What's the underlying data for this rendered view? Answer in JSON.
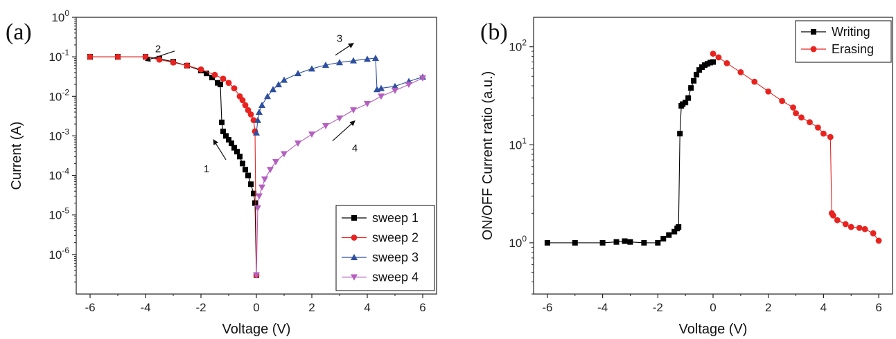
{
  "chart_data": [
    {
      "type": "line",
      "panel_label": "(a)",
      "xlabel": "Voltage (V)",
      "ylabel": "Current (A)",
      "xlim": [
        -6.5,
        6.5
      ],
      "ylim": [
        1e-07,
        1
      ],
      "yscale": "log",
      "x_ticks": [
        "-6",
        "-4",
        "-2",
        "0",
        "2",
        "4",
        "6"
      ],
      "y_ticks": [
        {
          "base": "10",
          "exp": "-6"
        },
        {
          "base": "10",
          "exp": "-5"
        },
        {
          "base": "10",
          "exp": "-4"
        },
        {
          "base": "10",
          "exp": "-3"
        },
        {
          "base": "10",
          "exp": "-2"
        },
        {
          "base": "10",
          "exp": "-1"
        },
        {
          "base": "10",
          "exp": "0"
        }
      ],
      "grid": false,
      "legend_position": "bottom-right",
      "series": [
        {
          "name": "sweep 1",
          "color": "#000000",
          "marker": "square",
          "x": [
            0,
            -0.05,
            -0.1,
            -0.2,
            -0.3,
            -0.4,
            -0.5,
            -0.6,
            -0.7,
            -0.8,
            -0.9,
            -1.0,
            -1.1,
            -1.2,
            -1.25,
            -1.3,
            -1.4,
            -1.6,
            -1.8,
            -2.0,
            -2.5,
            -3.0,
            -3.5,
            -4.0,
            -5.0,
            -6.0
          ],
          "y": [
            3e-07,
            2e-05,
            3.5e-05,
            6e-05,
            0.0001,
            0.00014,
            0.0002,
            0.0003,
            0.0004,
            0.0005,
            0.00065,
            0.0008,
            0.001,
            0.0013,
            0.0022,
            0.02,
            0.022,
            0.03,
            0.038,
            0.045,
            0.06,
            0.075,
            0.09,
            0.1,
            0.1,
            0.1
          ]
        },
        {
          "name": "sweep 2",
          "color": "#e8231f",
          "marker": "circle",
          "x": [
            -6.0,
            -5.0,
            -4.0,
            -3.5,
            -3.0,
            -2.5,
            -2.0,
            -1.5,
            -1.2,
            -1.0,
            -0.8,
            -0.6,
            -0.5,
            -0.4,
            -0.3,
            -0.2,
            -0.1,
            -0.05,
            0
          ],
          "y": [
            0.1,
            0.1,
            0.1,
            0.085,
            0.072,
            0.06,
            0.048,
            0.035,
            0.028,
            0.022,
            0.016,
            0.01,
            0.008,
            0.006,
            0.0045,
            0.0035,
            0.0025,
            0.0013,
            3e-07
          ]
        },
        {
          "name": "sweep 3",
          "color": "#2f4f9f",
          "marker": "triangle-up",
          "x": [
            0,
            0.05,
            0.1,
            0.2,
            0.4,
            0.6,
            0.8,
            1.0,
            1.5,
            2.0,
            2.5,
            3.0,
            3.5,
            4.0,
            4.3,
            4.35,
            4.5,
            5.0,
            5.5,
            6.0
          ],
          "y": [
            0.0012,
            0.0025,
            0.004,
            0.006,
            0.01,
            0.015,
            0.02,
            0.026,
            0.038,
            0.05,
            0.062,
            0.072,
            0.08,
            0.088,
            0.093,
            0.015,
            0.016,
            0.018,
            0.024,
            0.031
          ]
        },
        {
          "name": "sweep 4",
          "color": "#b45fc0",
          "marker": "triangle-down",
          "x": [
            0,
            0.05,
            0.1,
            0.2,
            0.3,
            0.5,
            0.7,
            1.0,
            1.5,
            2.0,
            2.5,
            3.0,
            3.5,
            4.0,
            4.5,
            5.0,
            5.5,
            6.0
          ],
          "y": [
            3e-07,
            1.5e-05,
            3e-05,
            5e-05,
            8e-05,
            0.00014,
            0.00022,
            0.00035,
            0.00065,
            0.0011,
            0.0018,
            0.0028,
            0.0045,
            0.0065,
            0.01,
            0.014,
            0.02,
            0.029
          ]
        }
      ],
      "annotations": [
        {
          "text": "1",
          "x": -1.8,
          "y": 0.00012,
          "arrow_from": [
            -1.1,
            0.00025
          ],
          "arrow_to": [
            -1.55,
            0.0008
          ]
        },
        {
          "text": "2",
          "x": -3.55,
          "y": 0.13,
          "arrow_from": [
            -2.95,
            0.14
          ],
          "arrow_to": [
            -4.0,
            0.08
          ]
        },
        {
          "text": "3",
          "x": 3.0,
          "y": 0.24,
          "arrow_from": [
            2.85,
            0.11
          ],
          "arrow_to": [
            3.5,
            0.22
          ]
        },
        {
          "text": "4",
          "x": 3.55,
          "y": 0.0004,
          "arrow_from": [
            2.75,
            0.00075
          ],
          "arrow_to": [
            3.55,
            0.0024
          ]
        }
      ]
    },
    {
      "type": "line",
      "panel_label": "(b)",
      "xlabel": "Voltage (V)",
      "ylabel": "ON/OFF Current ratio (a.u.)",
      "xlim": [
        -6.5,
        6.5
      ],
      "ylim": [
        0.3,
        200
      ],
      "yscale": "log",
      "x_ticks": [
        "-6",
        "-4",
        "-2",
        "0",
        "2",
        "4",
        "6"
      ],
      "y_ticks": [
        {
          "base": "10",
          "exp": "0"
        },
        {
          "base": "10",
          "exp": "1"
        },
        {
          "base": "10",
          "exp": "2"
        }
      ],
      "grid": false,
      "legend_position": "top-right",
      "series": [
        {
          "name": "Writing",
          "color": "#000000",
          "marker": "square",
          "x": [
            -6.0,
            -5.0,
            -4.0,
            -3.5,
            -3.2,
            -3.0,
            -2.5,
            -2.0,
            -1.8,
            -1.6,
            -1.4,
            -1.3,
            -1.25,
            -1.2,
            -1.15,
            -1.1,
            -1.0,
            -0.9,
            -0.8,
            -0.7,
            -0.6,
            -0.5,
            -0.4,
            -0.3,
            -0.2,
            -0.1,
            0
          ],
          "y": [
            1.0,
            1.0,
            1.0,
            1.02,
            1.04,
            1.02,
            1.0,
            1.0,
            1.1,
            1.2,
            1.3,
            1.4,
            1.45,
            13.0,
            25.0,
            26.0,
            27.0,
            30.0,
            38.0,
            45.0,
            52.0,
            58.0,
            62.0,
            65.0,
            67.0,
            69.0,
            70.0
          ]
        },
        {
          "name": "Erasing",
          "color": "#e8231f",
          "marker": "circle",
          "x": [
            0,
            0.2,
            0.5,
            1.0,
            1.5,
            2.0,
            2.5,
            2.9,
            3.0,
            3.2,
            3.5,
            3.8,
            4.0,
            4.25,
            4.3,
            4.35,
            4.5,
            4.8,
            5.0,
            5.3,
            5.5,
            5.8,
            6.0
          ],
          "y": [
            85.0,
            78.0,
            68.0,
            55.0,
            44.0,
            35.0,
            28.0,
            24.0,
            21.0,
            19.0,
            17.0,
            15.0,
            13.0,
            12.0,
            2.0,
            1.9,
            1.7,
            1.55,
            1.45,
            1.42,
            1.38,
            1.25,
            1.05
          ]
        }
      ]
    }
  ]
}
